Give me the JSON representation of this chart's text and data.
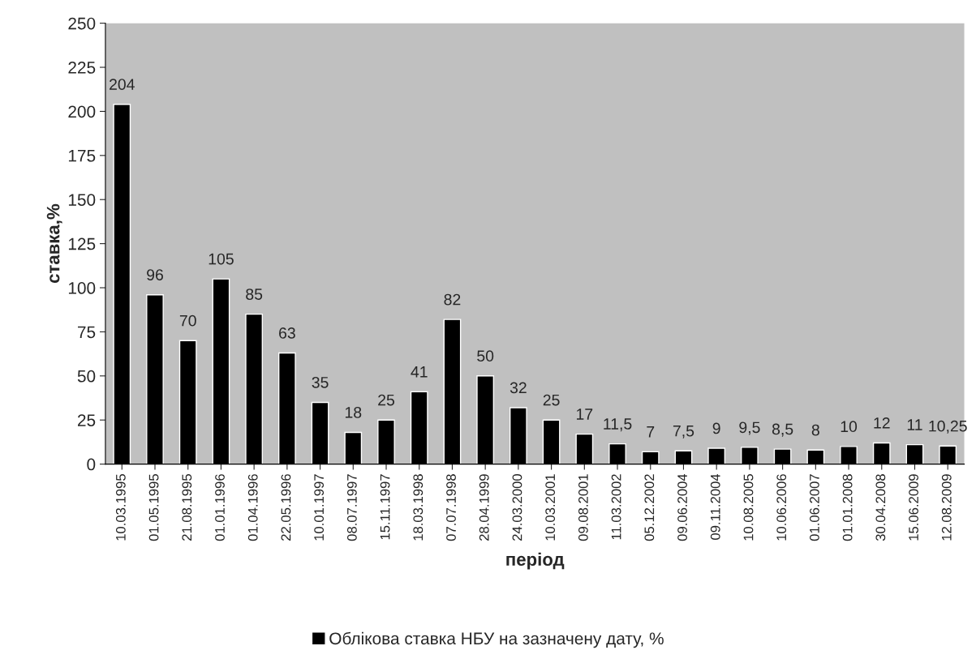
{
  "chart_data": {
    "type": "bar",
    "xlabel": "період",
    "ylabel": "ставка,%",
    "categories": [
      "10.03.1995",
      "01.05.1995",
      "21.08.1995",
      "01.01.1996",
      "01.04.1996",
      "22.05.1996",
      "10.01.1997",
      "08.07.1997",
      "15.11.1997",
      "18.03.1998",
      "07.07.1998",
      "28.04.1999",
      "24.03.2000",
      "10.03.2001",
      "09.08.2001",
      "11.03.2002",
      "05.12.2002",
      "09.06.2004",
      "09.11.2004",
      "10.08.2005",
      "10.06.2006",
      "01.06.2007",
      "01.01.2008",
      "30.04.2008",
      "15.06.2009",
      "12.08.2009"
    ],
    "series": [
      {
        "name": "Облікова ставка НБУ на зазначену дату, %",
        "color": "#000000",
        "values": [
          204,
          96,
          70,
          105,
          85,
          63,
          35,
          18,
          25,
          41,
          82,
          50,
          32,
          25,
          17,
          11.5,
          7,
          7.5,
          9,
          9.5,
          8.5,
          8,
          10,
          12,
          11,
          10.25
        ],
        "value_labels": [
          "204",
          "96",
          "70",
          "105",
          "85",
          "63",
          "35",
          "18",
          "25",
          "41",
          "82",
          "50",
          "32",
          "25",
          "17",
          "11,5",
          "7",
          "7,5",
          "9",
          "9,5",
          "8,5",
          "8",
          "10",
          "12",
          "11",
          "10,25"
        ]
      }
    ],
    "ylim": [
      0,
      250
    ],
    "yticks": [
      0,
      25,
      50,
      75,
      100,
      125,
      150,
      175,
      200,
      225,
      250
    ],
    "grid": false,
    "legend": "bottom"
  }
}
